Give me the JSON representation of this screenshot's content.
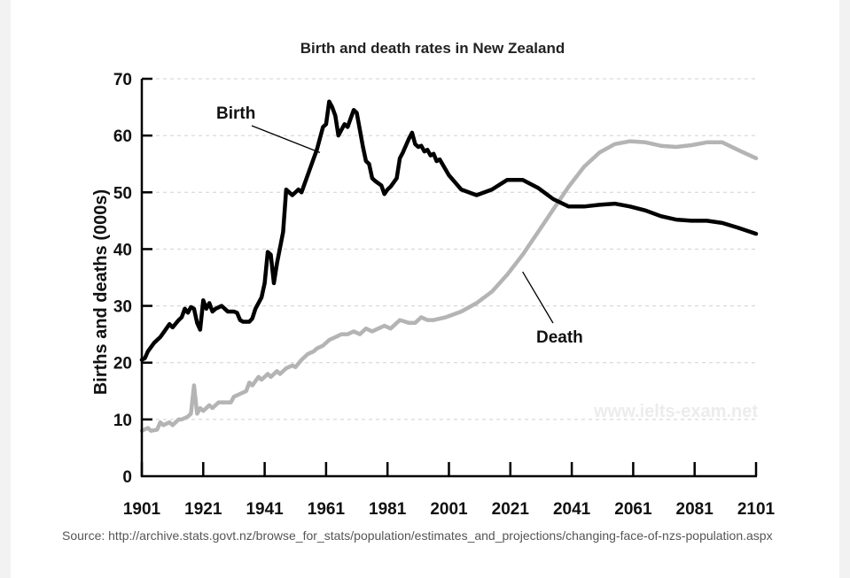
{
  "chart_data": {
    "type": "line",
    "title": "Birth and death rates in New Zealand",
    "xlabel": "",
    "ylabel": "Births and deaths (000s)",
    "xlim": [
      1901,
      2101
    ],
    "ylim": [
      0,
      70
    ],
    "x_ticks": [
      1901,
      1921,
      1941,
      1961,
      1981,
      2001,
      2021,
      2041,
      2061,
      2081,
      2101
    ],
    "y_ticks": [
      0,
      10,
      20,
      30,
      40,
      50,
      60,
      70
    ],
    "grid": "horizontal dashed",
    "series": [
      {
        "name": "Birth",
        "color": "#000000",
        "points": [
          [
            1901,
            20.5
          ],
          [
            1902,
            20.8
          ],
          [
            1903,
            22
          ],
          [
            1905,
            23.5
          ],
          [
            1907,
            24.5
          ],
          [
            1909,
            26
          ],
          [
            1910,
            26.8
          ],
          [
            1911,
            26.2
          ],
          [
            1913,
            27.5
          ],
          [
            1914,
            28
          ],
          [
            1915,
            29.5
          ],
          [
            1916,
            28.8
          ],
          [
            1917,
            29.8
          ],
          [
            1918,
            29.5
          ],
          [
            1919,
            27
          ],
          [
            1920,
            25.8
          ],
          [
            1921,
            31
          ],
          [
            1922,
            29.5
          ],
          [
            1923,
            30.5
          ],
          [
            1924,
            29
          ],
          [
            1925,
            29.5
          ],
          [
            1927,
            30
          ],
          [
            1928,
            29.5
          ],
          [
            1929,
            29
          ],
          [
            1931,
            29
          ],
          [
            1932,
            28.8
          ],
          [
            1933,
            27.5
          ],
          [
            1934,
            27.2
          ],
          [
            1936,
            27.2
          ],
          [
            1937,
            27.8
          ],
          [
            1938,
            29.5
          ],
          [
            1940,
            31.5
          ],
          [
            1941,
            34
          ],
          [
            1942,
            39.5
          ],
          [
            1943,
            39
          ],
          [
            1944,
            34
          ],
          [
            1945,
            37.5
          ],
          [
            1947,
            43
          ],
          [
            1948,
            50.5
          ],
          [
            1949,
            50
          ],
          [
            1950,
            49.5
          ],
          [
            1952,
            50.5
          ],
          [
            1953,
            50
          ],
          [
            1955,
            53
          ],
          [
            1957,
            56
          ],
          [
            1958,
            57.5
          ],
          [
            1960,
            61.5
          ],
          [
            1961,
            62
          ],
          [
            1962,
            66
          ],
          [
            1963,
            65
          ],
          [
            1964,
            63.5
          ],
          [
            1965,
            60
          ],
          [
            1966,
            61
          ],
          [
            1967,
            62
          ],
          [
            1968,
            61.5
          ],
          [
            1969,
            63
          ],
          [
            1970,
            64.5
          ],
          [
            1971,
            64
          ],
          [
            1972,
            61
          ],
          [
            1973,
            58
          ],
          [
            1974,
            55.5
          ],
          [
            1975,
            55
          ],
          [
            1976,
            52.5
          ],
          [
            1977,
            52
          ],
          [
            1979,
            51.2
          ],
          [
            1980,
            49.7
          ],
          [
            1981,
            50.5
          ],
          [
            1982,
            51
          ],
          [
            1984,
            52.5
          ],
          [
            1985,
            56
          ],
          [
            1986,
            57
          ],
          [
            1988,
            59.5
          ],
          [
            1989,
            60.5
          ],
          [
            1990,
            58.5
          ],
          [
            1991,
            58
          ],
          [
            1992,
            58.2
          ],
          [
            1993,
            57.2
          ],
          [
            1994,
            57.5
          ],
          [
            1995,
            56.5
          ],
          [
            1996,
            56.8
          ],
          [
            1997,
            55.5
          ],
          [
            1998,
            55.8
          ],
          [
            2001,
            53
          ],
          [
            2005,
            50.5
          ],
          [
            2010,
            49.5
          ],
          [
            2015,
            50.5
          ],
          [
            2020,
            52.2
          ],
          [
            2025,
            52.2
          ],
          [
            2030,
            50.8
          ],
          [
            2035,
            48.8
          ],
          [
            2040,
            47.5
          ],
          [
            2045,
            47.5
          ],
          [
            2050,
            47.8
          ],
          [
            2055,
            48
          ],
          [
            2060,
            47.5
          ],
          [
            2065,
            46.8
          ],
          [
            2070,
            45.8
          ],
          [
            2075,
            45.2
          ],
          [
            2080,
            45
          ],
          [
            2085,
            45
          ],
          [
            2090,
            44.6
          ],
          [
            2095,
            43.8
          ],
          [
            2101,
            42.7
          ]
        ]
      },
      {
        "name": "Death",
        "color": "#b4b4b4",
        "points": [
          [
            1901,
            8
          ],
          [
            1903,
            8.5
          ],
          [
            1904,
            8
          ],
          [
            1906,
            8.2
          ],
          [
            1907,
            9.5
          ],
          [
            1908,
            9
          ],
          [
            1910,
            9.5
          ],
          [
            1911,
            9
          ],
          [
            1913,
            10
          ],
          [
            1914,
            10
          ],
          [
            1916,
            10.5
          ],
          [
            1917,
            11
          ],
          [
            1918,
            16
          ],
          [
            1919,
            11
          ],
          [
            1920,
            12
          ],
          [
            1921,
            11.5
          ],
          [
            1923,
            12.5
          ],
          [
            1924,
            12
          ],
          [
            1926,
            13
          ],
          [
            1928,
            13
          ],
          [
            1930,
            13
          ],
          [
            1931,
            14
          ],
          [
            1933,
            14.5
          ],
          [
            1935,
            15
          ],
          [
            1936,
            16.5
          ],
          [
            1937,
            16
          ],
          [
            1939,
            17.5
          ],
          [
            1940,
            17
          ],
          [
            1942,
            18
          ],
          [
            1943,
            17.5
          ],
          [
            1945,
            18.5
          ],
          [
            1946,
            18
          ],
          [
            1948,
            19
          ],
          [
            1950,
            19.5
          ],
          [
            1951,
            19.2
          ],
          [
            1953,
            20.5
          ],
          [
            1955,
            21.5
          ],
          [
            1957,
            22
          ],
          [
            1958,
            22.5
          ],
          [
            1960,
            23
          ],
          [
            1962,
            24
          ],
          [
            1964,
            24.5
          ],
          [
            1966,
            25
          ],
          [
            1968,
            25
          ],
          [
            1970,
            25.5
          ],
          [
            1972,
            25
          ],
          [
            1974,
            26
          ],
          [
            1976,
            25.5
          ],
          [
            1978,
            26
          ],
          [
            1980,
            26.5
          ],
          [
            1982,
            26
          ],
          [
            1985,
            27.5
          ],
          [
            1988,
            27
          ],
          [
            1990,
            27
          ],
          [
            1992,
            28
          ],
          [
            1994,
            27.5
          ],
          [
            1996,
            27.5
          ],
          [
            2000,
            28
          ],
          [
            2005,
            29
          ],
          [
            2010,
            30.5
          ],
          [
            2015,
            32.5
          ],
          [
            2020,
            35.5
          ],
          [
            2025,
            39
          ],
          [
            2030,
            43
          ],
          [
            2035,
            47
          ],
          [
            2040,
            51
          ],
          [
            2045,
            54.5
          ],
          [
            2050,
            57
          ],
          [
            2055,
            58.5
          ],
          [
            2060,
            59
          ],
          [
            2065,
            58.8
          ],
          [
            2070,
            58.2
          ],
          [
            2075,
            58
          ],
          [
            2080,
            58.3
          ],
          [
            2085,
            58.8
          ],
          [
            2090,
            58.8
          ],
          [
            2095,
            57.5
          ],
          [
            2101,
            56
          ]
        ]
      }
    ],
    "annotations": [
      {
        "text": "Birth",
        "target_series": "Birth"
      },
      {
        "text": "Death",
        "target_series": "Death"
      }
    ],
    "watermark": "www.ielts-exam.net",
    "legend": "none (direct labels)"
  },
  "source": "Source: http://archive.stats.govt.nz/browse_for_stats/population/estimates_and_projections/changing-face-of-nzs-population.aspx"
}
